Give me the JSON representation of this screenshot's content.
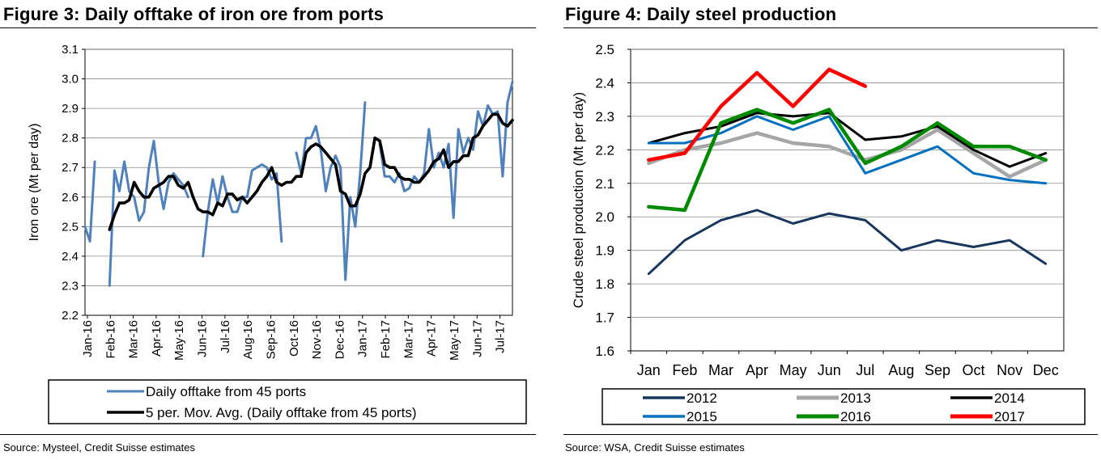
{
  "figure3": {
    "title": "Figure 3: Daily offtake of iron ore from ports",
    "source": "Source: Mysteel, Credit Suisse estimates"
  },
  "figure4": {
    "title": "Figure 4: Daily steel production",
    "source": "Source: WSA, Credit Suisse estimates"
  },
  "chart_data": [
    {
      "type": "line",
      "title": "Figure 3: Daily offtake of iron ore from ports",
      "ylabel": "Iron ore (Mt per day)",
      "xlabel": "",
      "ylim": [
        2.2,
        3.1
      ],
      "yticks": [
        "2.2",
        "2.3",
        "2.4",
        "2.5",
        "2.6",
        "2.7",
        "2.8",
        "2.9",
        "3.0",
        "3.1"
      ],
      "x_tick_labels": [
        "Jan-16",
        "Feb-16",
        "Mar-16",
        "Apr-16",
        "May-16",
        "Jun-16",
        "Jul-16",
        "Aug-16",
        "Sep-16",
        "Oct-16",
        "Nov-16",
        "Dec-16",
        "Jan-17",
        "Feb-17",
        "Mar-17",
        "Apr-17",
        "May-17",
        "Jun-17",
        "Jul-17"
      ],
      "grid": true,
      "legend": "bottom",
      "series": [
        {
          "name": "Daily offtake from 45 ports",
          "color": "#4F81BD",
          "values": [
            2.5,
            2.45,
            2.72,
            null,
            null,
            2.3,
            2.69,
            2.62,
            2.72,
            2.62,
            2.6,
            2.52,
            2.55,
            2.7,
            2.79,
            2.65,
            2.56,
            2.65,
            2.68,
            2.66,
            2.64,
            2.6,
            null,
            null,
            2.4,
            2.55,
            2.66,
            2.58,
            2.67,
            2.6,
            2.55,
            2.55,
            2.6,
            2.6,
            2.69,
            2.7,
            2.71,
            2.7,
            2.66,
            2.68,
            2.45,
            null,
            null,
            2.75,
            2.68,
            2.8,
            2.8,
            2.84,
            2.76,
            2.62,
            2.7,
            2.74,
            2.7,
            2.32,
            2.6,
            2.5,
            2.68,
            2.92,
            null,
            null,
            2.78,
            2.67,
            2.67,
            2.65,
            2.68,
            2.62,
            2.63,
            2.67,
            2.65,
            2.68,
            2.83,
            2.7,
            2.75,
            2.7,
            2.78,
            2.53,
            2.83,
            2.75,
            2.8,
            2.76,
            2.89,
            2.84,
            2.91,
            2.88,
            2.89,
            2.67,
            2.92,
            2.99
          ]
        },
        {
          "name": "5 per. Mov. Avg. (Daily offtake from 45 ports)",
          "color": "#000000",
          "values": [
            null,
            null,
            null,
            null,
            null,
            2.49,
            2.54,
            2.58,
            2.58,
            2.59,
            2.65,
            2.62,
            2.6,
            2.6,
            2.63,
            2.64,
            2.65,
            2.67,
            2.67,
            2.64,
            2.63,
            2.65,
            2.6,
            2.56,
            2.55,
            2.55,
            2.54,
            2.58,
            2.57,
            2.61,
            2.61,
            2.59,
            2.6,
            2.58,
            2.6,
            2.62,
            2.65,
            2.67,
            2.7,
            2.65,
            2.64,
            2.65,
            2.65,
            2.67,
            2.67,
            2.75,
            2.77,
            2.78,
            2.77,
            2.75,
            2.73,
            2.71,
            2.62,
            2.61,
            2.57,
            2.57,
            2.61,
            2.68,
            2.7,
            2.8,
            2.79,
            2.71,
            2.7,
            2.7,
            2.67,
            2.66,
            2.66,
            2.65,
            2.65,
            2.67,
            2.69,
            2.72,
            2.73,
            2.76,
            2.7,
            2.72,
            2.72,
            2.74,
            2.74,
            2.8,
            2.81,
            2.84,
            2.86,
            2.88,
            2.88,
            2.85,
            2.84,
            2.86
          ]
        }
      ]
    },
    {
      "type": "line",
      "title": "Figure 4: Daily steel production",
      "ylabel": "Crude steel production (Mt per day)",
      "xlabel": "",
      "ylim": [
        1.6,
        2.5
      ],
      "yticks": [
        "1.6",
        "1.7",
        "1.8",
        "1.9",
        "2.0",
        "2.1",
        "2.2",
        "2.3",
        "2.4",
        "2.5"
      ],
      "categories": [
        "Jan",
        "Feb",
        "Mar",
        "Apr",
        "May",
        "Jun",
        "Jul",
        "Aug",
        "Sep",
        "Oct",
        "Nov",
        "Dec"
      ],
      "grid": true,
      "legend": "bottom",
      "series": [
        {
          "name": "2012",
          "color": "#17375E",
          "values": [
            1.83,
            1.93,
            1.99,
            2.02,
            1.98,
            2.01,
            1.99,
            1.9,
            1.93,
            1.91,
            1.93,
            1.86
          ]
        },
        {
          "name": "2013",
          "color": "#A6A6A6",
          "values": [
            2.16,
            2.2,
            2.22,
            2.25,
            2.22,
            2.21,
            2.17,
            2.2,
            2.26,
            2.19,
            2.12,
            2.17
          ]
        },
        {
          "name": "2014",
          "color": "#000000",
          "values": [
            2.22,
            2.25,
            2.27,
            2.31,
            2.3,
            2.31,
            2.23,
            2.24,
            2.27,
            2.2,
            2.15,
            2.19
          ]
        },
        {
          "name": "2015",
          "color": "#0070C0",
          "values": [
            2.22,
            2.22,
            2.25,
            2.3,
            2.26,
            2.3,
            2.13,
            2.17,
            2.21,
            2.13,
            2.11,
            2.1
          ]
        },
        {
          "name": "2016",
          "color": "#008A00",
          "values": [
            2.03,
            2.02,
            2.28,
            2.32,
            2.28,
            2.32,
            2.16,
            2.21,
            2.28,
            2.21,
            2.21,
            2.17
          ]
        },
        {
          "name": "2017",
          "color": "#FF0000",
          "values": [
            2.17,
            2.19,
            2.33,
            2.43,
            2.33,
            2.44,
            2.39,
            null,
            null,
            null,
            null,
            null
          ]
        }
      ]
    }
  ]
}
